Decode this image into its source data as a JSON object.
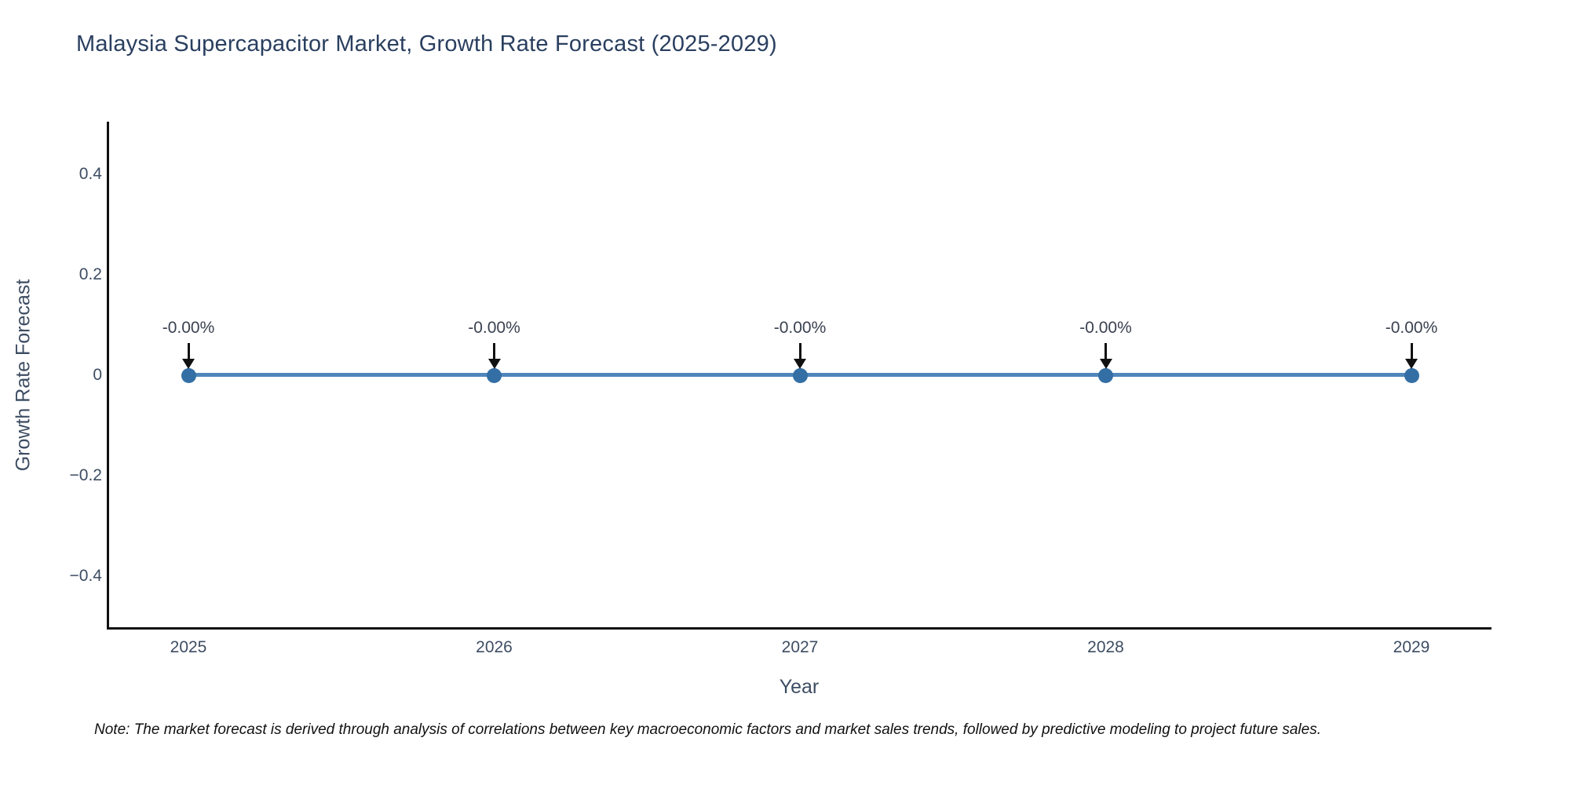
{
  "title": "Malaysia Supercapacitor Market, Growth Rate Forecast (2025-2029)",
  "footnote": "Note: The market forecast is derived through analysis of correlations between key macroeconomic factors and market sales trends, followed by predictive modeling to project future sales.",
  "chart_data": {
    "type": "line",
    "title": "Malaysia Supercapacitor Market, Growth Rate Forecast (2025-2029)",
    "x": [
      2025,
      2026,
      2027,
      2028,
      2029
    ],
    "xtick_labels": [
      "2025",
      "2026",
      "2027",
      "2028",
      "2029"
    ],
    "series": [
      {
        "name": "Growth Rate Forecast",
        "values": [
          0,
          0,
          0,
          0,
          0
        ]
      }
    ],
    "point_labels": [
      "-0.00%",
      "-0.00%",
      "-0.00%",
      "-0.00%",
      "-0.00%"
    ],
    "xlabel": "Year",
    "ylabel": "Growth Rate Forecast",
    "ylim": [
      -0.5,
      0.5
    ],
    "yticks": [
      0.4,
      0.2,
      0,
      -0.2,
      -0.4
    ],
    "ytick_labels": [
      "0.4",
      "0.2",
      "0",
      "−0.2",
      "−0.4"
    ],
    "grid": false,
    "legend_position": "none",
    "colors": {
      "line": "#4f86bb",
      "marker": "#336fa5",
      "axis": "#111111",
      "tick_text": "#3d4d63",
      "title_text": "#2a3f5f",
      "annotation_text": "#3a4150",
      "annotation_arrow": "#111111"
    }
  }
}
